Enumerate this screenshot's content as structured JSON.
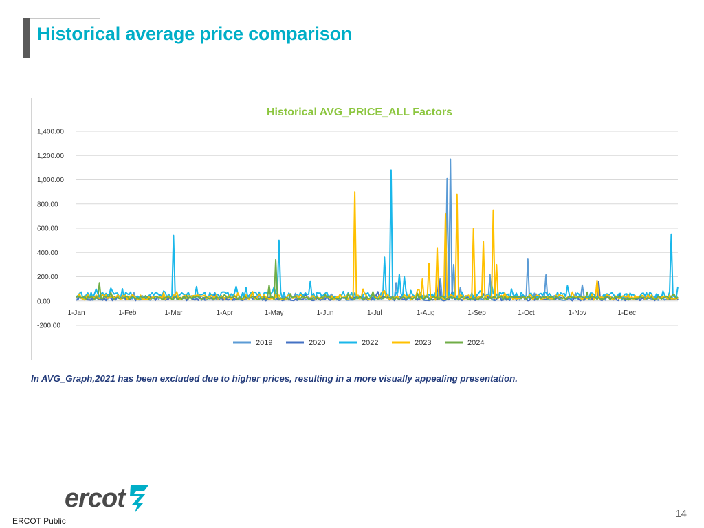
{
  "slide": {
    "title": "Historical average price comparison",
    "note": "In AVG_Graph,2021 has been excluded due to higher prices, resulting in a more visually appealing presentation.",
    "footer_label": "ERCOT Public",
    "page_number": "14",
    "logo_text": "ercot"
  },
  "colors": {
    "title": "#00aec7",
    "chart_title": "#8cc63f",
    "note": "#233b7a"
  },
  "chart_data": {
    "type": "line",
    "title": "Historical AVG_PRICE_ALL Factors",
    "xlabel": "",
    "ylabel": "",
    "ylim": [
      -200,
      1400
    ],
    "y_ticks": [
      {
        "value": 1400,
        "label": "1,400.00"
      },
      {
        "value": 1200,
        "label": "1,200.00"
      },
      {
        "value": 1000,
        "label": "1,000.00"
      },
      {
        "value": 800,
        "label": "800.00"
      },
      {
        "value": 600,
        "label": "600.00"
      },
      {
        "value": 400,
        "label": "400.00"
      },
      {
        "value": 200,
        "label": "200.00"
      },
      {
        "value": 0,
        "label": "0.00"
      },
      {
        "value": -200,
        "label": "-200.00"
      }
    ],
    "x_ticks": [
      {
        "day": 1,
        "label": "1-Jan"
      },
      {
        "day": 32,
        "label": "1-Feb"
      },
      {
        "day": 60,
        "label": "1-Mar"
      },
      {
        "day": 91,
        "label": "1-Apr"
      },
      {
        "day": 121,
        "label": "1-May"
      },
      {
        "day": 152,
        "label": "1-Jun"
      },
      {
        "day": 182,
        "label": "1-Jul"
      },
      {
        "day": 213,
        "label": "1-Aug"
      },
      {
        "day": 244,
        "label": "1-Sep"
      },
      {
        "day": 274,
        "label": "1-Oct"
      },
      {
        "day": 305,
        "label": "1-Nov"
      },
      {
        "day": 335,
        "label": "1-Dec"
      }
    ],
    "x_range": [
      1,
      366
    ],
    "legend_position": "bottom",
    "series": [
      {
        "name": "2019",
        "color": "#5b9bd5",
        "base": 25,
        "noise": 20,
        "spikes": [
          [
            195,
            150
          ],
          [
            222,
            180
          ],
          [
            226,
            1010
          ],
          [
            228,
            1170
          ],
          [
            230,
            300
          ],
          [
            234,
            110
          ],
          [
            252,
            220
          ],
          [
            275,
            350
          ],
          [
            286,
            215
          ],
          [
            308,
            130
          ]
        ]
      },
      {
        "name": "2020",
        "color": "#4472c4",
        "base": 20,
        "noise": 18,
        "spikes": [
          [
            52,
            50
          ],
          [
            85,
            70
          ],
          [
            140,
            60
          ],
          [
            183,
            50
          ],
          [
            221,
            190
          ],
          [
            248,
            60
          ],
          [
            318,
            160
          ],
          [
            331,
            60
          ]
        ]
      },
      {
        "name": "2022",
        "color": "#1ab7ea",
        "base": 45,
        "noise": 30,
        "spikes": [
          [
            7,
            50
          ],
          [
            60,
            540
          ],
          [
            86,
            50
          ],
          [
            98,
            120
          ],
          [
            104,
            110
          ],
          [
            124,
            500
          ],
          [
            143,
            165
          ],
          [
            175,
            50
          ],
          [
            188,
            360
          ],
          [
            192,
            1080
          ],
          [
            197,
            220
          ],
          [
            200,
            200
          ],
          [
            253,
            140
          ],
          [
            265,
            100
          ],
          [
            362,
            550
          ]
        ]
      },
      {
        "name": "2023",
        "color": "#ffc000",
        "base": 30,
        "noise": 22,
        "spikes": [
          [
            170,
            900
          ],
          [
            211,
            180
          ],
          [
            215,
            310
          ],
          [
            220,
            440
          ],
          [
            225,
            720
          ],
          [
            232,
            880
          ],
          [
            242,
            600
          ],
          [
            248,
            490
          ],
          [
            254,
            750
          ],
          [
            256,
            300
          ],
          [
            317,
            170
          ]
        ]
      },
      {
        "name": "2024",
        "color": "#70ad47",
        "base": 25,
        "noise": 16,
        "spikes": [
          [
            15,
            150
          ],
          [
            22,
            70
          ],
          [
            122,
            340
          ],
          [
            118,
            130
          ]
        ]
      }
    ]
  }
}
